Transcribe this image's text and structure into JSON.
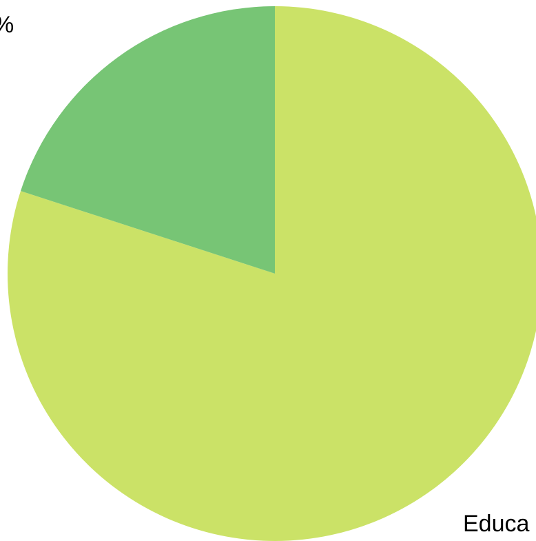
{
  "chart_data": {
    "type": "pie",
    "title": "",
    "slices": [
      {
        "label": "",
        "value": 80,
        "color": "#cbe267",
        "label_text": "Educa"
      },
      {
        "label": "",
        "value": 20,
        "color": "#77c575",
        "label_text": "%"
      }
    ],
    "start_angle_deg": 0,
    "direction": "clockwise",
    "legend": "none"
  }
}
